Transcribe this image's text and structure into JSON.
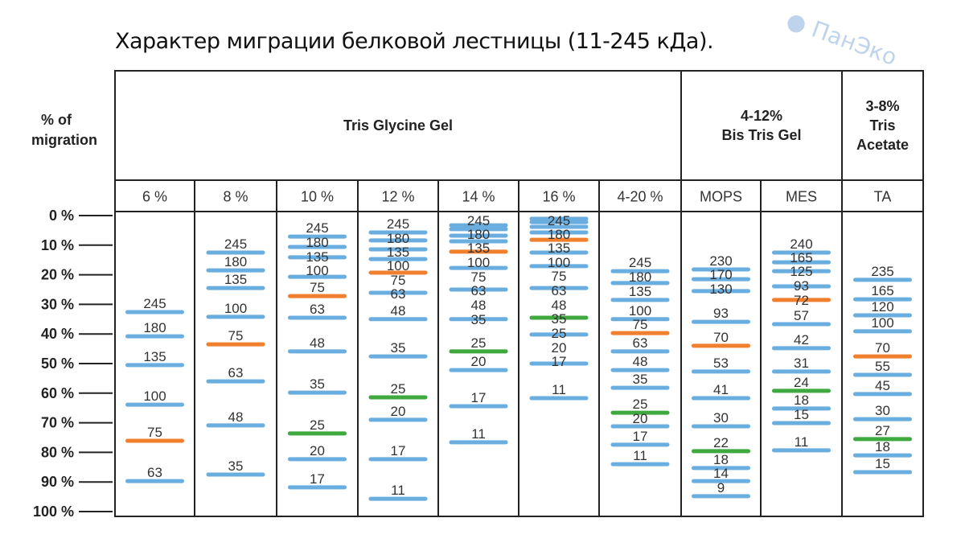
{
  "title": "Характер миграции белковой лестницы (11-245 кДа).",
  "watermark": "ПанЭко",
  "chart_data": {
    "type": "table",
    "ylabel": "% of migration",
    "ylim": [
      0,
      100
    ],
    "yticks": [
      "0 %",
      "10 %",
      "20 %",
      "30 %",
      "40 %",
      "50 %",
      "60 %",
      "70 %",
      "80 %",
      "90 %",
      "100 %"
    ],
    "colors": {
      "normal": "#6aaee0",
      "orange": "#f07f2e",
      "green": "#3fa83f"
    },
    "groups": [
      {
        "label": "Tris Glycine Gel",
        "span": 7
      },
      {
        "label": "4-12%\nBis Tris Gel",
        "span": 2
      },
      {
        "label": "3-8%\nTris\nAcetate",
        "span": 1
      }
    ],
    "lanes": [
      {
        "label": "6 %",
        "bands": [
          [
            "245",
            32.6,
            "normal"
          ],
          [
            "180",
            40.8,
            "normal"
          ],
          [
            "135",
            50.5,
            "normal"
          ],
          [
            "100",
            63.9,
            "normal"
          ],
          [
            "75",
            76.1,
            "orange"
          ],
          [
            "63",
            89.7,
            "normal"
          ]
        ]
      },
      {
        "label": "8 %",
        "bands": [
          [
            "245",
            12.5,
            "normal"
          ],
          [
            "180",
            18.5,
            "normal"
          ],
          [
            "135",
            24.5,
            "normal"
          ],
          [
            "100",
            34.2,
            "normal"
          ],
          [
            "75",
            43.5,
            "orange"
          ],
          [
            "63",
            56,
            "normal"
          ],
          [
            "48",
            70.9,
            "normal"
          ],
          [
            "35",
            87.5,
            "normal"
          ]
        ]
      },
      {
        "label": "10 %",
        "bands": [
          [
            "245",
            7.1,
            "normal"
          ],
          [
            "180",
            10.6,
            "normal"
          ],
          [
            "135",
            14.1,
            "normal"
          ],
          [
            "100",
            20.7,
            "normal"
          ],
          [
            "75",
            27.2,
            "orange"
          ],
          [
            "63",
            34.5,
            "normal"
          ],
          [
            "48",
            45.9,
            "normal"
          ],
          [
            "35",
            59.8,
            "normal"
          ],
          [
            "25",
            73.6,
            "green"
          ],
          [
            "20",
            82.3,
            "normal"
          ],
          [
            "17",
            91.8,
            "normal"
          ]
        ]
      },
      {
        "label": "12 %",
        "bands": [
          [
            "245",
            5.7,
            "normal"
          ],
          [
            "180",
            8.4,
            "normal"
          ],
          [
            "135",
            11.4,
            "normal"
          ],
          [
            "100",
            14.7,
            "normal"
          ],
          [
            "75",
            19.3,
            "orange"
          ],
          [
            "63",
            26.1,
            "normal"
          ],
          [
            "48",
            35,
            "normal"
          ],
          [
            "35",
            47.6,
            "normal"
          ],
          [
            "25",
            61.4,
            "green"
          ],
          [
            "20",
            69,
            "normal"
          ],
          [
            "17",
            82.3,
            "normal"
          ],
          [
            "11",
            95.7,
            "normal"
          ]
        ]
      },
      {
        "label": "14 %",
        "bands": [
          [
            "245",
            3.3,
            "normal"
          ],
          [
            "180",
            4.6,
            "normal"
          ],
          [
            "135",
            6.8,
            "normal"
          ],
          [
            "100",
            8.7,
            "normal"
          ],
          [
            "75",
            12.2,
            "orange"
          ],
          [
            "63",
            17.7,
            "normal"
          ],
          [
            "48",
            25,
            "normal"
          ],
          [
            "35",
            35,
            "normal"
          ],
          [
            "25",
            45.9,
            "green"
          ],
          [
            "20",
            52.2,
            "normal"
          ],
          [
            "17",
            64.4,
            "normal"
          ],
          [
            "11",
            76.6,
            "normal"
          ]
        ]
      },
      {
        "label": "16 %",
        "bands": [
          [
            "245",
            1.1,
            "normal"
          ],
          [
            "180",
            2.2,
            "normal"
          ],
          [
            "135",
            3.8,
            "normal"
          ],
          [
            "100",
            5.7,
            "normal"
          ],
          [
            "75",
            8.2,
            "orange"
          ],
          [
            "63",
            12.5,
            "normal"
          ],
          [
            "48",
            17.1,
            "normal"
          ],
          [
            "35",
            24.5,
            "normal"
          ],
          [
            "25",
            34.5,
            "green"
          ],
          [
            "20",
            40.2,
            "normal"
          ],
          [
            "17",
            50,
            "normal"
          ],
          [
            "11",
            61.7,
            "normal"
          ]
        ]
      },
      {
        "label": "4-20 %",
        "bands": [
          [
            "245",
            18.8,
            "normal"
          ],
          [
            "180",
            22.8,
            "normal"
          ],
          [
            "135",
            28.5,
            "normal"
          ],
          [
            "100",
            35,
            "normal"
          ],
          [
            "75",
            39.7,
            "orange"
          ],
          [
            "63",
            45.9,
            "normal"
          ],
          [
            "48",
            52.2,
            "normal"
          ],
          [
            "35",
            58.2,
            "normal"
          ],
          [
            "25",
            66.6,
            "green"
          ],
          [
            "20",
            71.2,
            "normal"
          ],
          [
            "17",
            77.4,
            "normal"
          ],
          [
            "11",
            84,
            "normal"
          ]
        ]
      },
      {
        "label": "MOPS",
        "bands": [
          [
            "230",
            18.2,
            "normal"
          ],
          [
            "170",
            21.5,
            "normal"
          ],
          [
            "130",
            25.5,
            "normal"
          ],
          [
            "93",
            35.9,
            "normal"
          ],
          [
            "70",
            44,
            "orange"
          ],
          [
            "53",
            52.7,
            "normal"
          ],
          [
            "41",
            61.7,
            "normal"
          ],
          [
            "30",
            71.2,
            "normal"
          ],
          [
            "22",
            79.6,
            "green"
          ],
          [
            "18",
            85.3,
            "normal"
          ],
          [
            "14",
            89.7,
            "normal"
          ],
          [
            "9",
            94.8,
            "normal"
          ]
        ]
      },
      {
        "label": "MES",
        "bands": [
          [
            "240",
            12.5,
            "normal"
          ],
          [
            "165",
            15.8,
            "normal"
          ],
          [
            "125",
            18.8,
            "normal"
          ],
          [
            "93",
            23.9,
            "normal"
          ],
          [
            "72",
            28.5,
            "orange"
          ],
          [
            "57",
            36.7,
            "normal"
          ],
          [
            "42",
            44.8,
            "normal"
          ],
          [
            "31",
            52.7,
            "normal"
          ],
          [
            "24",
            59.2,
            "green"
          ],
          [
            "18",
            65.2,
            "normal"
          ],
          [
            "15",
            70.1,
            "normal"
          ],
          [
            "11",
            79.3,
            "normal"
          ]
        ]
      },
      {
        "label": "TA",
        "bands": [
          [
            "235",
            21.7,
            "normal"
          ],
          [
            "165",
            28.3,
            "normal"
          ],
          [
            "120",
            33.7,
            "normal"
          ],
          [
            "100",
            39.1,
            "normal"
          ],
          [
            "70",
            47.6,
            "orange"
          ],
          [
            "55",
            53.8,
            "normal"
          ],
          [
            "45",
            60.3,
            "normal"
          ],
          [
            "30",
            68.8,
            "normal"
          ],
          [
            "27",
            75.5,
            "green"
          ],
          [
            "18",
            81,
            "normal"
          ],
          [
            "15",
            86.7,
            "normal"
          ]
        ]
      }
    ]
  }
}
